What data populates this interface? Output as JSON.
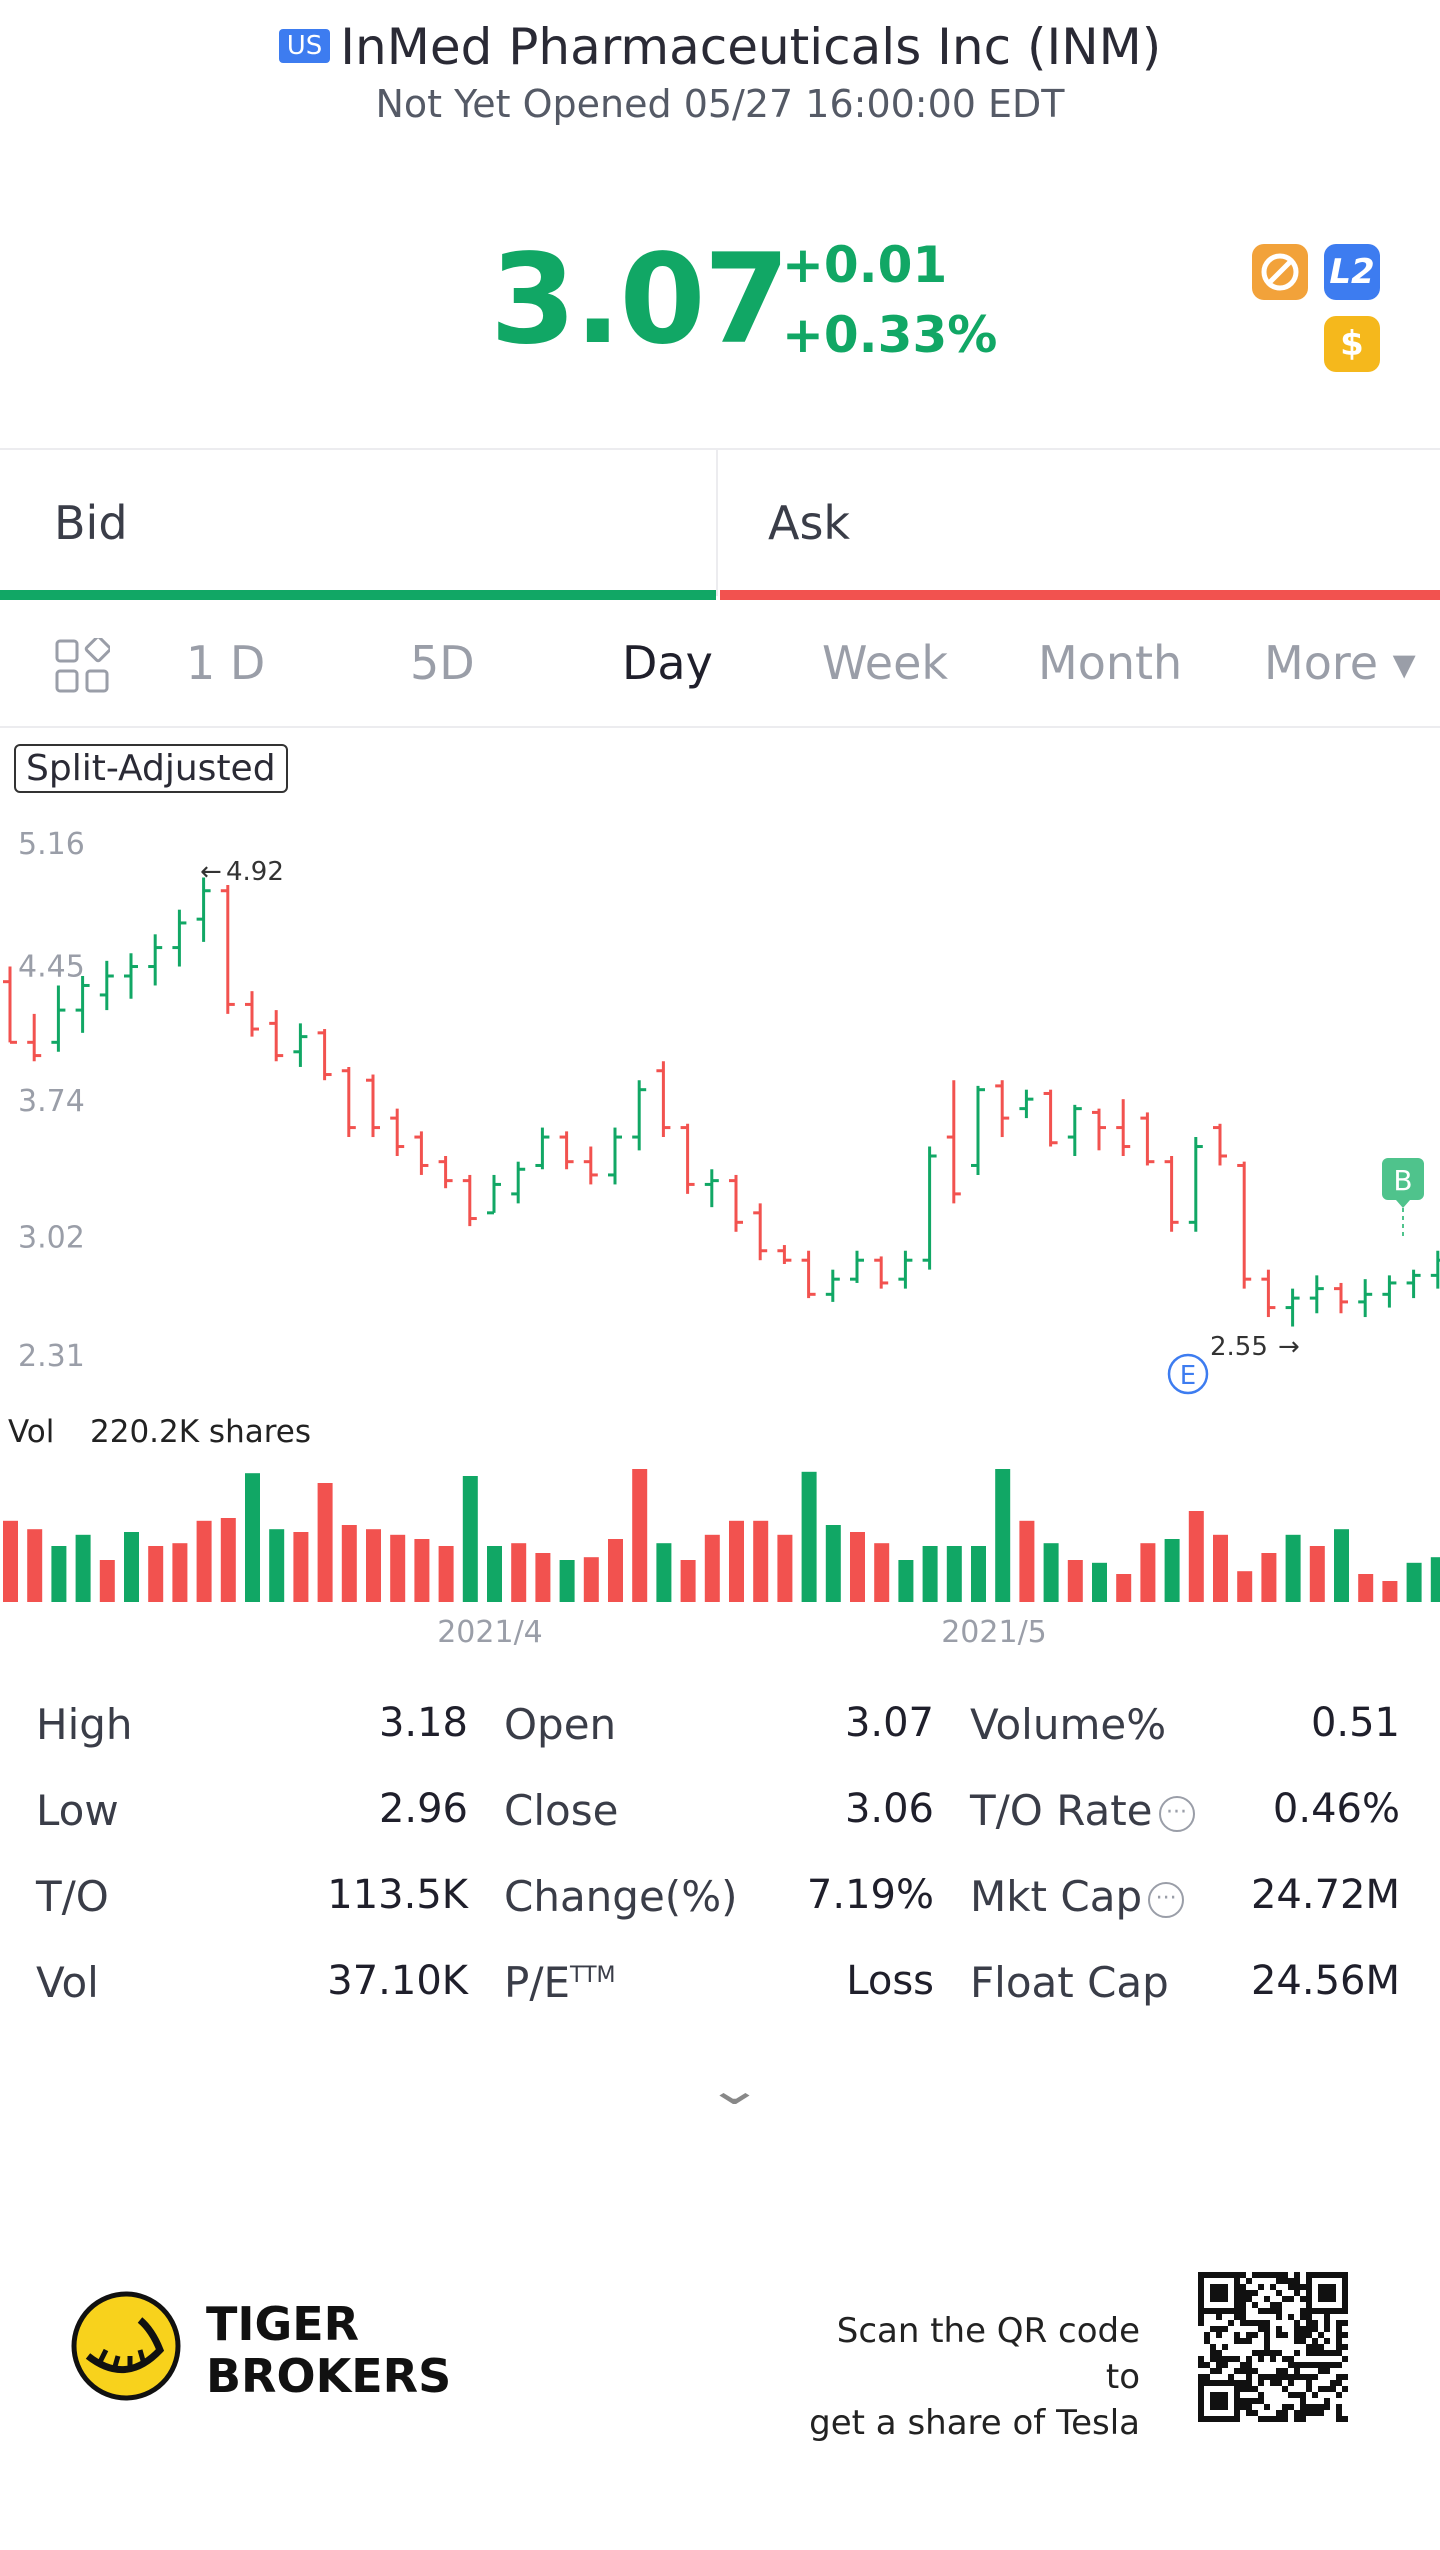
{
  "header": {
    "market_badge": "US",
    "title": "InMed Pharmaceuticals Inc (INM)",
    "status": "Not Yet Opened 05/27 16:00:00 EDT"
  },
  "quote": {
    "price": "3.07",
    "change_abs": "+0.01",
    "change_pct": "+0.33%",
    "badges": [
      {
        "icon": "no-sign-icon",
        "color": "#f2a23a"
      },
      {
        "label": "L2",
        "color": "#3d7cf0"
      },
      {
        "label": "$",
        "color": "#f5b81c"
      }
    ]
  },
  "order_book": {
    "bid_label": "Bid",
    "ask_label": "Ask"
  },
  "period_tabs": [
    {
      "label": "1 D",
      "active": false
    },
    {
      "label": "5D",
      "active": false
    },
    {
      "label": "Day",
      "active": true
    },
    {
      "label": "Week",
      "active": false
    },
    {
      "label": "Month",
      "active": false
    },
    {
      "label": "More ▾",
      "active": false
    }
  ],
  "chart": {
    "split_label": "Split-Adjusted",
    "high_marker": "4.92",
    "low_marker": "2.55",
    "earnings_marker": "E",
    "buy_marker": "B",
    "volume_label": "Vol",
    "volume_value": "220.2K shares",
    "x_ticks": [
      "2021/4",
      "2021/5"
    ]
  },
  "chart_data": {
    "type": "bar",
    "y_ticks": [
      "5.16",
      "4.45",
      "3.74",
      "3.02",
      "2.31"
    ],
    "ylim": [
      2.31,
      5.16
    ],
    "ohlc": [
      [
        4.37,
        4.45,
        4.05,
        4.05
      ],
      [
        4.05,
        4.2,
        3.95,
        3.98
      ],
      [
        4.05,
        4.35,
        4.0,
        4.22
      ],
      [
        4.22,
        4.4,
        4.1,
        4.35
      ],
      [
        4.3,
        4.48,
        4.22,
        4.4
      ],
      [
        4.4,
        4.52,
        4.28,
        4.45
      ],
      [
        4.45,
        4.62,
        4.35,
        4.55
      ],
      [
        4.55,
        4.75,
        4.45,
        4.68
      ],
      [
        4.7,
        4.92,
        4.58,
        4.85
      ],
      [
        4.85,
        4.88,
        4.2,
        4.25
      ],
      [
        4.25,
        4.32,
        4.08,
        4.12
      ],
      [
        4.15,
        4.22,
        3.95,
        3.98
      ],
      [
        4.0,
        4.15,
        3.92,
        4.08
      ],
      [
        4.1,
        4.12,
        3.85,
        3.88
      ],
      [
        3.9,
        3.92,
        3.55,
        3.6
      ],
      [
        3.85,
        3.88,
        3.55,
        3.6
      ],
      [
        3.65,
        3.7,
        3.45,
        3.5
      ],
      [
        3.55,
        3.58,
        3.35,
        3.4
      ],
      [
        3.42,
        3.45,
        3.28,
        3.32
      ],
      [
        3.32,
        3.35,
        3.08,
        3.12
      ],
      [
        3.15,
        3.35,
        3.15,
        3.3
      ],
      [
        3.25,
        3.42,
        3.2,
        3.38
      ],
      [
        3.4,
        3.6,
        3.38,
        3.55
      ],
      [
        3.55,
        3.58,
        3.38,
        3.42
      ],
      [
        3.42,
        3.5,
        3.3,
        3.35
      ],
      [
        3.35,
        3.6,
        3.3,
        3.55
      ],
      [
        3.55,
        3.85,
        3.48,
        3.8
      ],
      [
        3.9,
        3.95,
        3.55,
        3.6
      ],
      [
        3.6,
        3.62,
        3.25,
        3.3
      ],
      [
        3.3,
        3.38,
        3.18,
        3.32
      ],
      [
        3.32,
        3.35,
        3.05,
        3.1
      ],
      [
        3.15,
        3.2,
        2.9,
        2.95
      ],
      [
        2.95,
        2.98,
        2.88,
        2.9
      ],
      [
        2.9,
        2.95,
        2.7,
        2.72
      ],
      [
        2.72,
        2.85,
        2.68,
        2.8
      ],
      [
        2.8,
        2.95,
        2.78,
        2.9
      ],
      [
        2.9,
        2.92,
        2.75,
        2.78
      ],
      [
        2.8,
        2.95,
        2.75,
        2.9
      ],
      [
        2.9,
        3.5,
        2.85,
        3.45
      ],
      [
        3.55,
        3.85,
        3.2,
        3.25
      ],
      [
        3.4,
        3.82,
        3.35,
        3.8
      ],
      [
        3.82,
        3.85,
        3.55,
        3.65
      ],
      [
        3.7,
        3.8,
        3.65,
        3.75
      ],
      [
        3.78,
        3.8,
        3.5,
        3.52
      ],
      [
        3.55,
        3.72,
        3.45,
        3.7
      ],
      [
        3.68,
        3.7,
        3.48,
        3.6
      ],
      [
        3.6,
        3.75,
        3.45,
        3.5
      ],
      [
        3.65,
        3.68,
        3.4,
        3.42
      ],
      [
        3.42,
        3.45,
        3.05,
        3.1
      ],
      [
        3.1,
        3.55,
        3.05,
        3.5
      ],
      [
        3.6,
        3.62,
        3.4,
        3.45
      ],
      [
        3.4,
        3.42,
        2.75,
        2.8
      ],
      [
        2.8,
        2.85,
        2.6,
        2.65
      ],
      [
        2.65,
        2.75,
        2.55,
        2.7
      ],
      [
        2.7,
        2.82,
        2.62,
        2.75
      ],
      [
        2.75,
        2.78,
        2.62,
        2.68
      ],
      [
        2.68,
        2.8,
        2.6,
        2.72
      ],
      [
        2.72,
        2.82,
        2.65,
        2.78
      ],
      [
        2.78,
        2.85,
        2.7,
        2.82
      ],
      [
        2.82,
        2.95,
        2.75,
        2.9
      ],
      [
        2.9,
        3.1,
        2.85,
        3.05
      ],
      [
        3.05,
        3.22,
        3.0,
        3.15
      ]
    ],
    "volume_up": [
      false,
      false,
      true,
      true,
      false,
      true,
      false,
      false,
      false,
      false,
      true,
      true,
      false,
      false,
      false,
      false,
      false,
      false,
      false,
      true,
      true,
      false,
      false,
      true,
      false,
      false,
      false,
      true,
      false,
      false,
      false,
      false,
      false,
      true,
      true,
      false,
      false,
      true,
      true,
      true,
      true,
      true,
      false,
      true,
      false,
      true,
      false,
      false,
      true,
      false,
      false,
      false,
      false,
      true,
      false,
      true,
      false,
      false,
      true,
      true,
      true,
      true
    ],
    "volume": [
      58,
      52,
      40,
      48,
      30,
      50,
      40,
      42,
      58,
      60,
      92,
      52,
      50,
      85,
      55,
      52,
      48,
      45,
      40,
      90,
      40,
      42,
      35,
      30,
      32,
      45,
      95,
      42,
      30,
      48,
      58,
      58,
      48,
      93,
      55,
      50,
      42,
      30,
      40,
      40,
      40,
      95,
      58,
      42,
      30,
      28,
      20,
      42,
      45,
      65,
      48,
      22,
      35,
      48,
      40,
      52,
      20,
      15,
      28,
      32,
      42,
      58
    ]
  },
  "stats": [
    [
      {
        "label": "High",
        "value": "3.18"
      },
      {
        "label": "Open",
        "value": "3.07"
      },
      {
        "label": "Volume%",
        "value": "0.51"
      }
    ],
    [
      {
        "label": "Low",
        "value": "2.96"
      },
      {
        "label": "Close",
        "value": "3.06"
      },
      {
        "label": "T/O Rate",
        "value": "0.46%"
      }
    ],
    [
      {
        "label": "T/O",
        "value": "113.5K"
      },
      {
        "label": "Change(%)",
        "value": "7.19%"
      },
      {
        "label": "Mkt Cap",
        "value": "24.72M"
      }
    ],
    [
      {
        "label": "Vol",
        "value": "37.10K"
      },
      {
        "label": "P/E",
        "label_sup": "TTM",
        "value": "Loss"
      },
      {
        "label": "Float Cap",
        "value": "24.56M"
      }
    ]
  ],
  "footer": {
    "brand_line1": "TIGER",
    "brand_line2": "BROKERS",
    "qr_line1": "Scan the QR code to",
    "qr_line2": "get a share of Tesla"
  },
  "colors": {
    "up": "#11a765",
    "down": "#f2524f",
    "accent": "#3d7cf0"
  }
}
